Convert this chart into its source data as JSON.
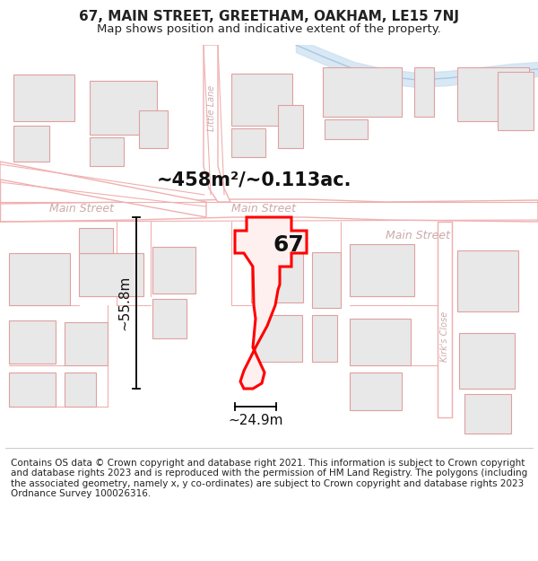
{
  "title_line1": "67, MAIN STREET, GREETHAM, OAKHAM, LE15 7NJ",
  "title_line2": "Map shows position and indicative extent of the property.",
  "footer_text": "Contains OS data © Crown copyright and database right 2021. This information is subject to Crown copyright and database rights 2023 and is reproduced with the permission of HM Land Registry. The polygons (including the associated geometry, namely x, y co-ordinates) are subject to Crown copyright and database rights 2023 Ordnance Survey 100026316.",
  "area_label": "~458m²/~0.113ac.",
  "width_label": "~24.9m",
  "height_label": "~55.8m",
  "property_number": "67",
  "bg_color": "#ffffff",
  "map_bg": "#f5f5f5",
  "road_color": "#f0b0b0",
  "road_fill": "#ffffff",
  "building_fill": "#e8e8e8",
  "building_stroke": "#e0a0a0",
  "highlight_color": "#ff0000",
  "highlight_fill": "#fff0f0",
  "street_label_color": "#ccaaaa",
  "river_color": "#c8dff0",
  "title_fontsize": 11,
  "subtitle_fontsize": 9.5,
  "footer_fontsize": 7.5,
  "area_fontsize": 15,
  "dim_fontsize": 11,
  "prop_num_fontsize": 18,
  "street_fontsize": 9
}
